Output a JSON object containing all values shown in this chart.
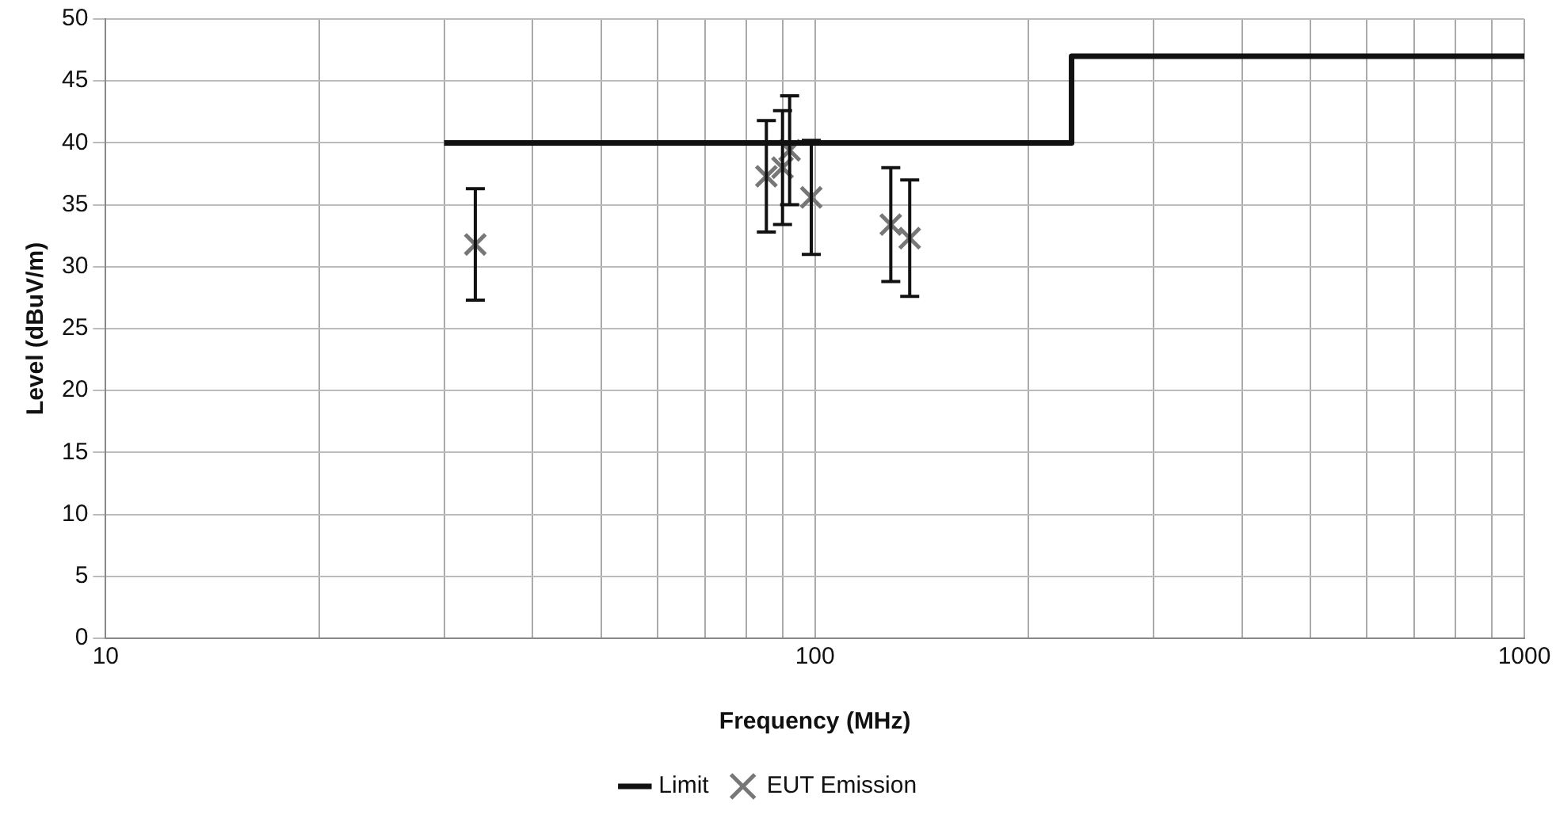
{
  "chart_data": {
    "type": "scatter",
    "xlabel": "Frequency (MHz)",
    "ylabel": "Level (dBuV/m)",
    "log": "x",
    "grid": true,
    "legend": "bottom",
    "xlim": [
      10,
      1000
    ],
    "xticks": [
      10,
      {
        "value": 20,
        "label": null
      },
      {
        "value": 30,
        "label": null
      },
      {
        "value": 40,
        "label": null
      },
      {
        "value": 50,
        "label": null
      },
      {
        "value": 60,
        "label": null
      },
      {
        "value": 70,
        "label": null
      },
      {
        "value": 80,
        "label": null
      },
      {
        "value": 90,
        "label": null
      },
      100,
      {
        "value": 200,
        "label": null
      },
      {
        "value": 300,
        "label": null
      },
      {
        "value": 400,
        "label": null
      },
      {
        "value": 500,
        "label": null
      },
      {
        "value": 600,
        "label": null
      },
      {
        "value": 700,
        "label": null
      },
      {
        "value": 800,
        "label": null
      },
      {
        "value": 900,
        "label": null
      },
      1000
    ],
    "ylim": [
      0,
      50
    ],
    "yticks": [
      0,
      5,
      10,
      15,
      20,
      25,
      30,
      35,
      40,
      45,
      50
    ],
    "series": [
      {
        "name": "Limit",
        "type": "line",
        "color": "#111111",
        "marker": "none",
        "line_style": "solid",
        "x": [
          30,
          230,
          230,
          1000
        ],
        "values": [
          40,
          40,
          47,
          47
        ]
      },
      {
        "name": "EUT Emission",
        "type": "scatter",
        "color": "#777777",
        "marker": "cross",
        "x": [
          33.2,
          85.4,
          90.0,
          92.1,
          98.8,
          127.9,
          136
        ],
        "values": [
          31.8,
          37.3,
          38.0,
          39.4,
          35.6,
          33.4,
          32.3
        ],
        "errors": [
          4.5,
          4.5,
          4.6,
          4.4,
          4.6,
          4.6,
          4.7
        ]
      }
    ]
  }
}
